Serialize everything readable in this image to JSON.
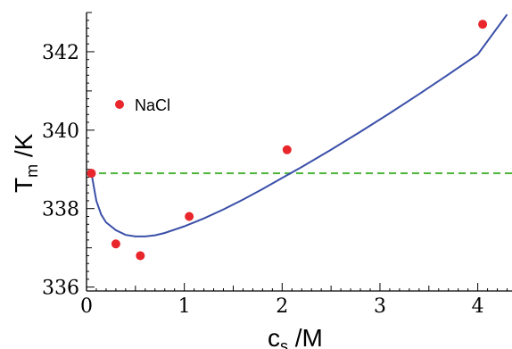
{
  "chart_data": {
    "type": "scatter",
    "xlabel": {
      "main": "c",
      "sub": "s",
      "unit": " /M"
    },
    "ylabel": {
      "main": "T",
      "sub": "m",
      "unit": " /K"
    },
    "xlim": [
      0,
      4.35
    ],
    "ylim": [
      335.9,
      343.0
    ],
    "x_ticks": [
      0,
      1,
      2,
      3,
      4
    ],
    "y_ticks": [
      336,
      338,
      340,
      342
    ],
    "grid": false,
    "legend": {
      "position": "top-left",
      "entries": [
        {
          "label": "NaCl",
          "color": "#e8262b",
          "marker": "circle"
        }
      ]
    },
    "series": [
      {
        "name": "NaCl",
        "kind": "points",
        "color": "#e8262b",
        "points": [
          [
            0.05,
            338.9
          ],
          [
            0.3,
            337.1
          ],
          [
            0.55,
            336.8
          ],
          [
            1.05,
            337.8
          ],
          [
            2.05,
            339.5
          ],
          [
            4.05,
            342.7
          ]
        ]
      },
      {
        "kind": "line",
        "color": "#3a4fa8",
        "points": [
          [
            0.05,
            338.9
          ],
          [
            0.1,
            338.2
          ],
          [
            0.15,
            337.85
          ],
          [
            0.2,
            337.65
          ],
          [
            0.3,
            337.45
          ],
          [
            0.4,
            337.33
          ],
          [
            0.5,
            337.29
          ],
          [
            0.6,
            337.29
          ],
          [
            0.7,
            337.32
          ],
          [
            0.8,
            337.38
          ],
          [
            1.0,
            337.55
          ],
          [
            1.2,
            337.75
          ],
          [
            1.4,
            337.98
          ],
          [
            1.6,
            338.23
          ],
          [
            1.8,
            338.5
          ],
          [
            2.0,
            338.78
          ],
          [
            2.2,
            339.06
          ],
          [
            2.5,
            339.5
          ],
          [
            2.8,
            339.96
          ],
          [
            3.1,
            340.43
          ],
          [
            3.4,
            340.92
          ],
          [
            3.7,
            341.42
          ],
          [
            4.0,
            341.93
          ],
          [
            4.3,
            342.95
          ]
        ]
      },
      {
        "kind": "reference-line",
        "color": "#4db53b",
        "style": "dashed",
        "y": 338.9
      }
    ]
  }
}
